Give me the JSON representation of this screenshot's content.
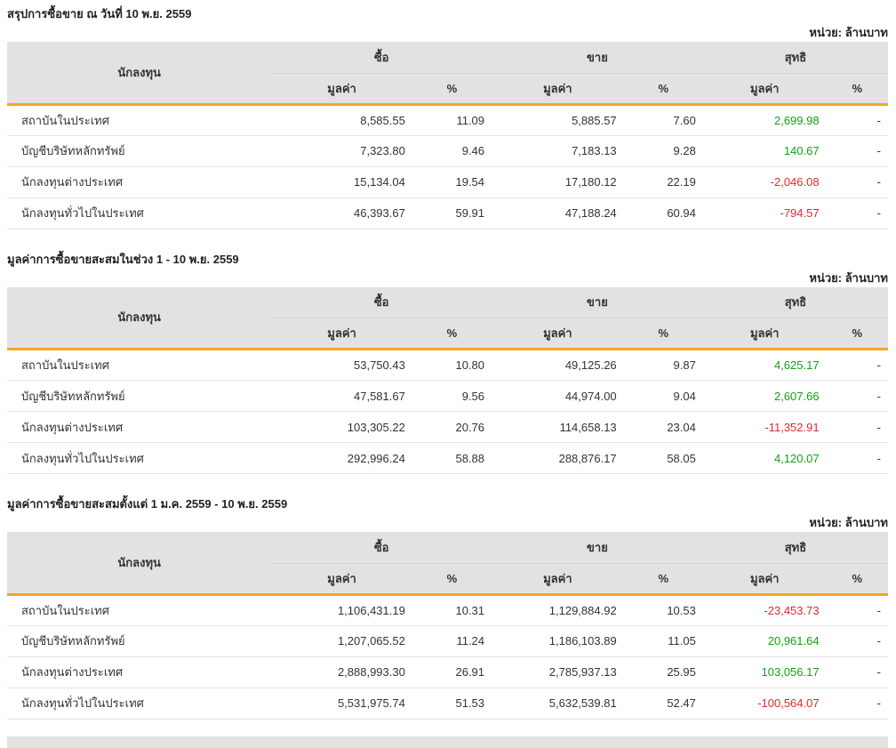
{
  "unit_label": "หน่วย: ล้านบาท",
  "columns": {
    "investor": "นักลงทุน",
    "buy": "ซื้อ",
    "sell": "ขาย",
    "net": "สุทธิ",
    "value": "มูลค่า",
    "percent": "%"
  },
  "colors": {
    "accent": "#F5A623",
    "header_bg": "#E2E2E2",
    "positive": "#15A015",
    "negative": "#E02B2B"
  },
  "tables": [
    {
      "title": "สรุปการซื้อขาย ณ วันที่ 10 พ.ย. 2559",
      "rows": [
        {
          "investor": "สถาบันในประเทศ",
          "buy_value": "8,585.55",
          "buy_pct": "11.09",
          "sell_value": "5,885.57",
          "sell_pct": "7.60",
          "net_value": "2,699.98",
          "net_sign": "pos",
          "net_pct": "-"
        },
        {
          "investor": "บัญชีบริษัทหลักทรัพย์",
          "buy_value": "7,323.80",
          "buy_pct": "9.46",
          "sell_value": "7,183.13",
          "sell_pct": "9.28",
          "net_value": "140.67",
          "net_sign": "pos",
          "net_pct": "-"
        },
        {
          "investor": "นักลงทุนต่างประเทศ",
          "buy_value": "15,134.04",
          "buy_pct": "19.54",
          "sell_value": "17,180.12",
          "sell_pct": "22.19",
          "net_value": "-2,046.08",
          "net_sign": "neg",
          "net_pct": "-"
        },
        {
          "investor": "นักลงทุนทั่วไปในประเทศ",
          "buy_value": "46,393.67",
          "buy_pct": "59.91",
          "sell_value": "47,188.24",
          "sell_pct": "60.94",
          "net_value": "-794.57",
          "net_sign": "neg",
          "net_pct": "-"
        }
      ]
    },
    {
      "title": "มูลค่าการซื้อขายสะสมในช่วง 1 - 10 พ.ย. 2559",
      "rows": [
        {
          "investor": "สถาบันในประเทศ",
          "buy_value": "53,750.43",
          "buy_pct": "10.80",
          "sell_value": "49,125.26",
          "sell_pct": "9.87",
          "net_value": "4,625.17",
          "net_sign": "pos",
          "net_pct": "-"
        },
        {
          "investor": "บัญชีบริษัทหลักทรัพย์",
          "buy_value": "47,581.67",
          "buy_pct": "9.56",
          "sell_value": "44,974.00",
          "sell_pct": "9.04",
          "net_value": "2,607.66",
          "net_sign": "pos",
          "net_pct": "-"
        },
        {
          "investor": "นักลงทุนต่างประเทศ",
          "buy_value": "103,305.22",
          "buy_pct": "20.76",
          "sell_value": "114,658.13",
          "sell_pct": "23.04",
          "net_value": "-11,352.91",
          "net_sign": "neg",
          "net_pct": "-"
        },
        {
          "investor": "นักลงทุนทั่วไปในประเทศ",
          "buy_value": "292,996.24",
          "buy_pct": "58.88",
          "sell_value": "288,876.17",
          "sell_pct": "58.05",
          "net_value": "4,120.07",
          "net_sign": "pos",
          "net_pct": "-"
        }
      ]
    },
    {
      "title": "มูลค่าการซื้อขายสะสมตั้งแต่ 1 ม.ค. 2559 - 10 พ.ย. 2559",
      "rows": [
        {
          "investor": "สถาบันในประเทศ",
          "buy_value": "1,106,431.19",
          "buy_pct": "10.31",
          "sell_value": "1,129,884.92",
          "sell_pct": "10.53",
          "net_value": "-23,453.73",
          "net_sign": "neg",
          "net_pct": "-"
        },
        {
          "investor": "บัญชีบริษัทหลักทรัพย์",
          "buy_value": "1,207,065.52",
          "buy_pct": "11.24",
          "sell_value": "1,186,103.89",
          "sell_pct": "11.05",
          "net_value": "20,961.64",
          "net_sign": "pos",
          "net_pct": "-"
        },
        {
          "investor": "นักลงทุนต่างประเทศ",
          "buy_value": "2,888,993.30",
          "buy_pct": "26.91",
          "sell_value": "2,785,937.13",
          "sell_pct": "25.95",
          "net_value": "103,056.17",
          "net_sign": "pos",
          "net_pct": "-"
        },
        {
          "investor": "นักลงทุนทั่วไปในประเทศ",
          "buy_value": "5,531,975.74",
          "buy_pct": "51.53",
          "sell_value": "5,632,539.81",
          "sell_pct": "52.47",
          "net_value": "-100,564.07",
          "net_sign": "neg",
          "net_pct": "-"
        }
      ]
    }
  ]
}
